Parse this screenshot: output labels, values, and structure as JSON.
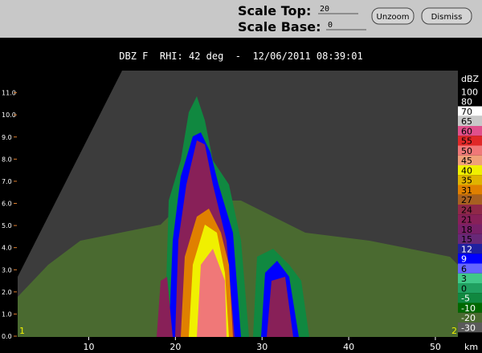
{
  "controls": {
    "scale_top_label": "Scale Top:",
    "scale_top": 20,
    "scale_base_label": "Scale Base:",
    "scale_base": 0,
    "buttons": [
      "Unzoom",
      "Dismiss"
    ]
  },
  "chart_data": {
    "type": "rhi",
    "title": "DBZ F  RHI: 42 deg  -  12/06/2011 08:39:01",
    "xlim": [
      1.8,
      52.6
    ],
    "xticks": [
      10,
      20,
      30,
      40,
      50
    ],
    "x_unit": "km",
    "ylim": [
      0,
      12
    ],
    "yticks": [
      {
        "value": 0,
        "label": "0.0"
      },
      {
        "value": 1,
        "label": "1.0"
      },
      {
        "value": 2,
        "label": "2.0"
      },
      {
        "value": 3,
        "label": "3.0"
      },
      {
        "value": 4,
        "label": "4.0"
      },
      {
        "value": 5,
        "label": "5.0"
      },
      {
        "value": 6,
        "label": "6.0"
      },
      {
        "value": 7,
        "label": "7.0"
      },
      {
        "value": 8,
        "label": "8.0"
      },
      {
        "value": 9,
        "label": "9.0"
      },
      {
        "value": 10,
        "label": "10.0"
      },
      {
        "value": 11,
        "label": "11.0"
      }
    ],
    "corner_labels": [
      "1",
      "2"
    ],
    "colorbar": {
      "title": "dBZ",
      "levels": [
        100,
        80,
        70,
        65,
        60,
        55,
        50,
        45,
        40,
        35,
        31,
        27,
        24,
        21,
        18,
        15,
        12,
        9,
        6,
        3,
        0,
        -5,
        -10,
        -20,
        -30
      ],
      "colors": [
        "#000000",
        "#000000",
        "#ffffff",
        "#c8c8c8",
        "#e0508c",
        "#e02828",
        "#f07878",
        "#f0a078",
        "#f0f000",
        "#e0b400",
        "#e08000",
        "#a86020",
        "#902848",
        "#882058",
        "#782068",
        "#682878",
        "#2020a0",
        "#0000ff",
        "#6464ff",
        "#40c888",
        "#20a060",
        "#108840",
        "#006800",
        "#4a6a30",
        "#5a5a5a"
      ]
    }
  }
}
